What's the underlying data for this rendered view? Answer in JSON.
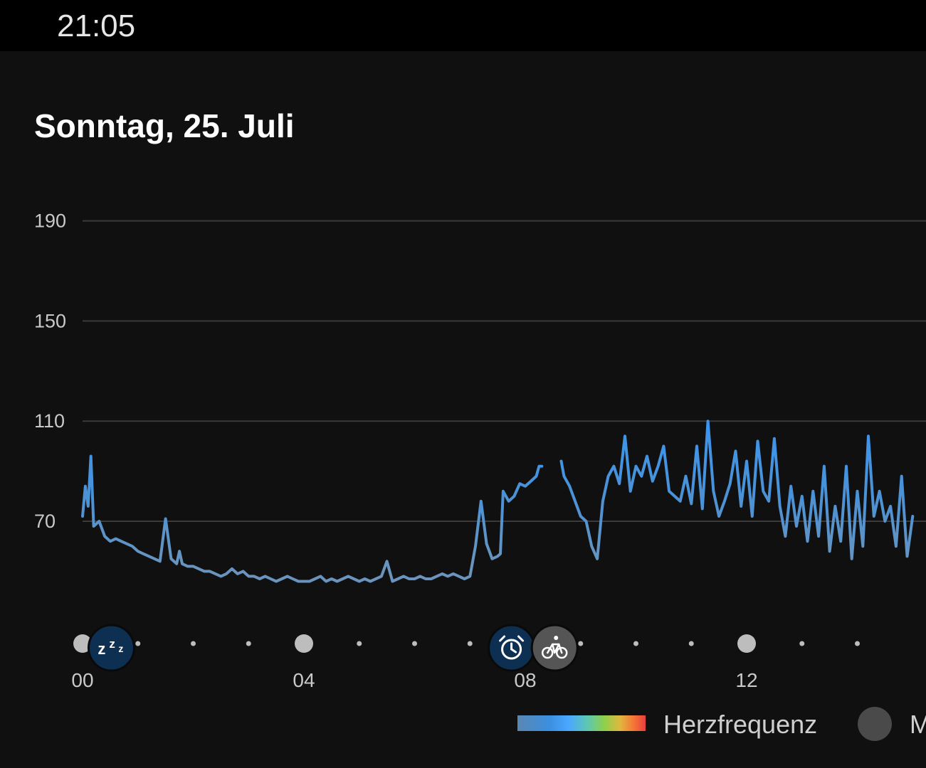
{
  "status_bar": {
    "time": "21:05"
  },
  "header": {
    "title": "Sonntag, 25. Juli"
  },
  "chart_data": {
    "type": "line",
    "title": "",
    "xlabel": "",
    "ylabel": "",
    "yticks": [
      "190",
      "150",
      "110",
      "70"
    ],
    "ytick_values": [
      190,
      150,
      110,
      70
    ],
    "xticks": [
      "00",
      "04",
      "08",
      "12"
    ],
    "xtick_values": [
      0,
      4,
      8,
      12
    ],
    "xlim": [
      0,
      15.0
    ],
    "ylim": [
      20,
      200
    ],
    "grid": true,
    "series": [
      {
        "name": "Herzfrequenz",
        "segments": [
          {
            "x": [
              0.0,
              0.05,
              0.1,
              0.15,
              0.2,
              0.3,
              0.4,
              0.5,
              0.6,
              0.7,
              0.8,
              0.9,
              1.0,
              1.1,
              1.2,
              1.3,
              1.4,
              1.5,
              1.6,
              1.7,
              1.75,
              1.8,
              1.9,
              2.0,
              2.1,
              2.2,
              2.3,
              2.4,
              2.5,
              2.6,
              2.7,
              2.8,
              2.9,
              3.0,
              3.1,
              3.2,
              3.3,
              3.4,
              3.5,
              3.6,
              3.7,
              3.8,
              3.9,
              4.0,
              4.1,
              4.2,
              4.3,
              4.4,
              4.5,
              4.6,
              4.7,
              4.8,
              4.9,
              5.0,
              5.1,
              5.2,
              5.3,
              5.4,
              5.5,
              5.6,
              5.7,
              5.8,
              5.9,
              6.0,
              6.1,
              6.2,
              6.3,
              6.4,
              6.5,
              6.6,
              6.7,
              6.8,
              6.9,
              7.0,
              7.1,
              7.2,
              7.3,
              7.4,
              7.5,
              7.55,
              7.6,
              7.7,
              7.8,
              7.9,
              8.0,
              8.1,
              8.2,
              8.25,
              8.3
            ],
            "y": [
              72,
              84,
              76,
              96,
              68,
              70,
              64,
              62,
              63,
              62,
              61,
              60,
              58,
              57,
              56,
              55,
              54,
              71,
              55,
              53,
              58,
              53,
              52,
              52,
              51,
              50,
              50,
              49,
              48,
              49,
              51,
              49,
              50,
              48,
              48,
              47,
              48,
              47,
              46,
              47,
              48,
              47,
              46,
              46,
              46,
              47,
              48,
              46,
              47,
              46,
              47,
              48,
              47,
              46,
              47,
              46,
              47,
              48,
              54,
              46,
              47,
              48,
              47,
              47,
              48,
              47,
              47,
              48,
              49,
              48,
              49,
              48,
              47,
              48,
              60,
              78,
              61,
              55,
              56,
              57,
              82,
              78,
              80,
              85,
              84,
              86,
              88,
              92,
              92
            ]
          },
          {
            "x": [
              8.65,
              8.7,
              8.8,
              8.9,
              9.0,
              9.1,
              9.2,
              9.3,
              9.4,
              9.5,
              9.6,
              9.7,
              9.8,
              9.9,
              10.0,
              10.1,
              10.2,
              10.3,
              10.4,
              10.5,
              10.6,
              10.7,
              10.8,
              10.9,
              11.0,
              11.1,
              11.2,
              11.3,
              11.4,
              11.5,
              11.6,
              11.7,
              11.8,
              11.9,
              12.0,
              12.1,
              12.2,
              12.3,
              12.4,
              12.5,
              12.6,
              12.7,
              12.8,
              12.9,
              13.0,
              13.1,
              13.2,
              13.3,
              13.4,
              13.5,
              13.6,
              13.7,
              13.8,
              13.9,
              14.0,
              14.1,
              14.2,
              14.3,
              14.4,
              14.5,
              14.6,
              14.7,
              14.8,
              14.9,
              15.0
            ],
            "y": [
              94,
              88,
              84,
              78,
              72,
              70,
              60,
              55,
              78,
              88,
              92,
              85,
              104,
              82,
              92,
              88,
              96,
              86,
              92,
              100,
              82,
              80,
              78,
              88,
              77,
              100,
              75,
              110,
              82,
              72,
              78,
              85,
              98,
              76,
              94,
              72,
              102,
              82,
              78,
              103,
              76,
              64,
              84,
              68,
              80,
              62,
              82,
              64,
              92,
              58,
              76,
              62,
              92,
              55,
              82,
              60,
              104,
              72,
              82,
              70,
              76,
              60,
              88,
              56,
              72
            ]
          }
        ]
      }
    ]
  },
  "timeline_markers": {
    "sleep_icon": "zzz-sleep-icon",
    "alarm_icon": "alarm-clock-icon",
    "bike_icon": "bicycle-icon",
    "dot_hours": [
      0,
      4,
      12
    ],
    "small_dot_hours": [
      1,
      2,
      3,
      5,
      6,
      7,
      9,
      10,
      11,
      13,
      14
    ]
  },
  "legend": {
    "items": [
      {
        "label": "Herzfrequenz"
      },
      {
        "label": "M"
      }
    ]
  },
  "colors": {
    "background": "#101010",
    "line_low": "#5f8fbf",
    "line_high": "#3d94ea",
    "marker_dark": "#0d2f52",
    "marker_grey": "#555555"
  }
}
